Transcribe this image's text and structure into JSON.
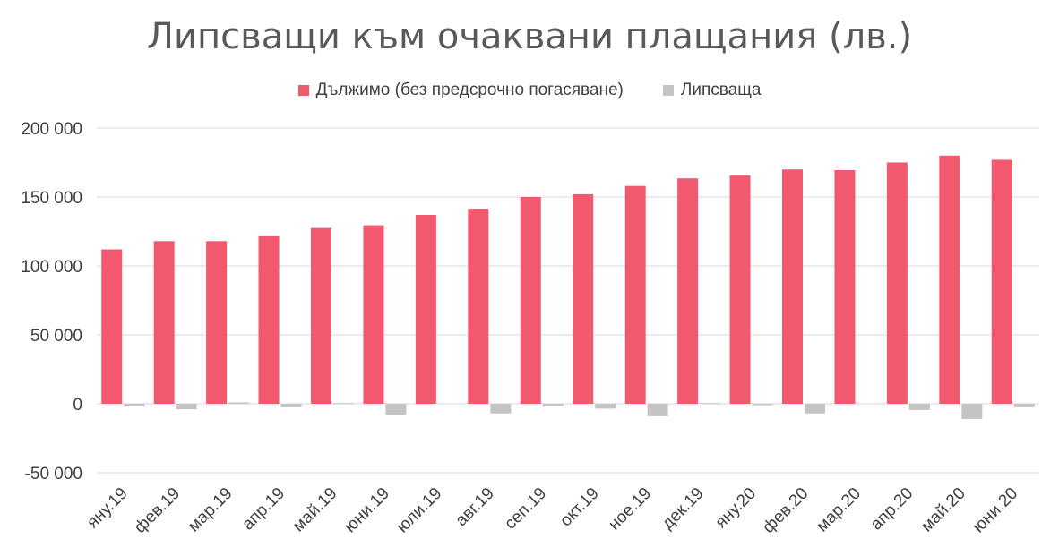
{
  "colors": {
    "owed": "#f2596e",
    "missing": "#c4c4c4",
    "grid": "#d9d9d9",
    "text": "#404040"
  },
  "chart_data": {
    "type": "bar",
    "title": "Липсващи към очаквани плащания (лв.)",
    "categories": [
      "яну.19",
      "фев.19",
      "мар.19",
      "апр.19",
      "май.19",
      "юни.19",
      "юли.19",
      "авг.19",
      "сеп.19",
      "окт.19",
      "ное.19",
      "дек.19",
      "яну.20",
      "фев.20",
      "мар.20",
      "апр.20",
      "май.20",
      "юни.20"
    ],
    "series": [
      {
        "name": "Дължимо  (без предсрочно погасяване)",
        "color": "#f2596e",
        "values": [
          112000,
          118000,
          118000,
          121500,
          127500,
          129500,
          137000,
          141500,
          150000,
          152000,
          158000,
          163500,
          165500,
          170000,
          169500,
          175000,
          180000,
          177000
        ]
      },
      {
        "name": "Липсваща",
        "color": "#c4c4c4",
        "values": [
          -2000,
          -4000,
          1000,
          -2500,
          500,
          -8000,
          0,
          -7000,
          -1500,
          -3500,
          -9000,
          500,
          -1000,
          -7000,
          0,
          -4500,
          -11000,
          -2500
        ]
      }
    ],
    "yticks": [
      "200 000",
      "150 000",
      "100 000",
      "50 000",
      "0",
      "-50 000"
    ],
    "ylim": [
      -50000,
      200000
    ],
    "grid": true,
    "legend": "top"
  }
}
